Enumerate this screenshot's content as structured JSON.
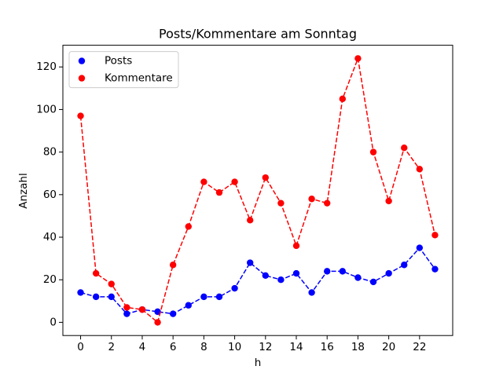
{
  "chart_data": {
    "type": "line",
    "title": "Posts/Kommentare am Sonntag",
    "x_label": "h",
    "y_label": "Anzahl",
    "x": [
      0,
      1,
      2,
      3,
      4,
      5,
      6,
      7,
      8,
      9,
      10,
      11,
      12,
      13,
      14,
      15,
      16,
      17,
      18,
      19,
      20,
      21,
      22,
      23
    ],
    "series": [
      {
        "name": "Posts",
        "color": "#0000ff",
        "values": [
          14,
          12,
          12,
          4,
          6,
          5,
          4,
          8,
          12,
          12,
          16,
          28,
          22,
          20,
          23,
          14,
          24,
          24,
          21,
          19,
          23,
          27,
          35,
          25
        ]
      },
      {
        "name": "Kommentare",
        "color": "#ff0000",
        "values": [
          97,
          23,
          18,
          7,
          6,
          0,
          27,
          45,
          66,
          61,
          66,
          48,
          68,
          56,
          36,
          58,
          56,
          105,
          124,
          80,
          57,
          82,
          72,
          41
        ]
      }
    ],
    "xlim": [
      -1.15,
      24.15
    ],
    "xticks": [
      0,
      2,
      4,
      6,
      8,
      10,
      12,
      14,
      16,
      18,
      20,
      22
    ],
    "ylim": [
      -6.2,
      130.2
    ],
    "yticks": [
      0,
      20,
      40,
      60,
      80,
      100,
      120
    ],
    "line_style": "dashed",
    "marker": "circle",
    "grid": false,
    "legend": "upper-left"
  }
}
